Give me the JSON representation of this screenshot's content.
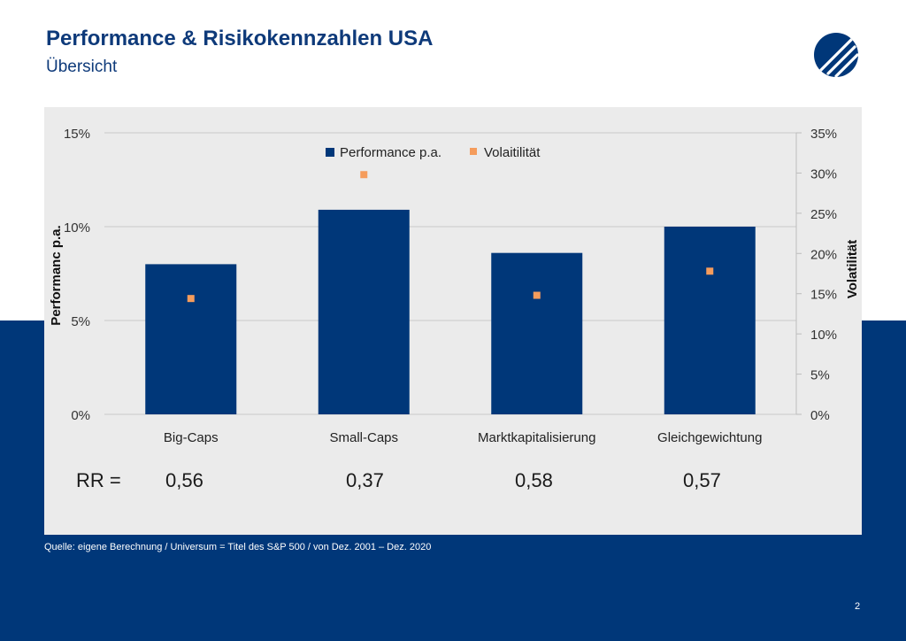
{
  "header": {
    "title": "Performance & Risikokennzahlen USA",
    "subtitle": "Übersicht"
  },
  "chart_data": {
    "type": "bar",
    "title": "",
    "categories": [
      "Big-Caps",
      "Small-Caps",
      "Marktkapitalisierung",
      "Gleichgewichtung"
    ],
    "series": [
      {
        "name": "Performance p.a.",
        "type": "bar",
        "axis": "left",
        "color": "#003779",
        "values": [
          8.0,
          10.9,
          8.6,
          10.0
        ]
      },
      {
        "name": "Volaitilität",
        "type": "scatter",
        "axis": "right",
        "color": "#f59c5c",
        "values": [
          14.4,
          29.8,
          14.8,
          17.8
        ]
      }
    ],
    "ylabel": "Performanc p.a.",
    "y2label": "Volatilität",
    "ylim": [
      0,
      15
    ],
    "y2lim": [
      0,
      35
    ],
    "yticks": [
      "0%",
      "5%",
      "10%",
      "15%"
    ],
    "y2ticks": [
      "0%",
      "5%",
      "10%",
      "15%",
      "20%",
      "25%",
      "30%",
      "35%"
    ],
    "grid": true,
    "legend": "top"
  },
  "rr": {
    "label": "RR =",
    "values": [
      "0,56",
      "0,37",
      "0,58",
      "0,57"
    ]
  },
  "footer": {
    "source": "Quelle: eigene Berechnung  / Universum  = Titel des S&P 500 / von Dez. 2001 – Dez. 2020",
    "page": "2"
  },
  "colors": {
    "brand": "#003779",
    "accent": "#f59c5c",
    "title": "#0e3a7a",
    "panel": "#ebebeb"
  }
}
